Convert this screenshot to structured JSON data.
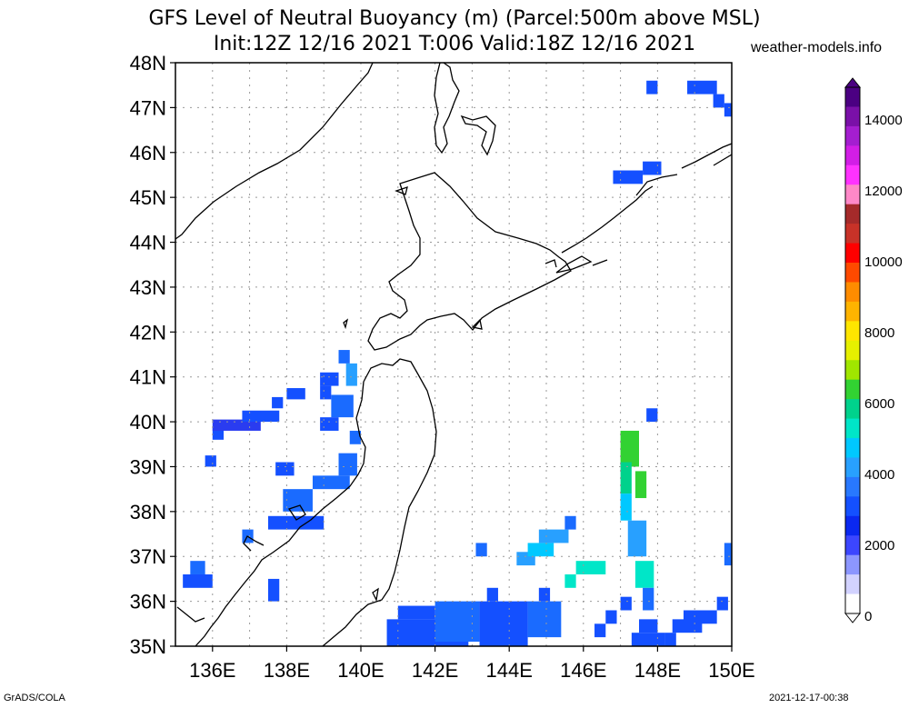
{
  "header": {
    "title_line1": "GFS Level of Neutral Buoyancy (m) (Parcel:500m above MSL)",
    "title_line2": "Init:12Z 12/16 2021 T:006 Valid:18Z 12/16 2021",
    "site": "weather-models.info"
  },
  "footer": {
    "credit": "GrADS/COLA",
    "timestamp": "2021-12-17-00:38"
  },
  "map": {
    "lat_labels": [
      "48N",
      "47N",
      "46N",
      "45N",
      "44N",
      "43N",
      "42N",
      "41N",
      "40N",
      "39N",
      "38N",
      "37N",
      "36N",
      "35N"
    ],
    "lon_labels": [
      "136E",
      "138E",
      "140E",
      "142E",
      "144E",
      "146E",
      "148E",
      "150E"
    ],
    "extent": {
      "lon_min": 135,
      "lon_max": 150,
      "lat_min": 35,
      "lat_max": 48
    }
  },
  "colorbar": {
    "labels": [
      "14000",
      "12000",
      "10000",
      "8000",
      "6000",
      "4000",
      "2000",
      "0"
    ],
    "colors": [
      "#4b0082",
      "#7a10a8",
      "#a41ed0",
      "#d21ee6",
      "#ff32ff",
      "#ff88c8",
      "#a52a2a",
      "#c83228",
      "#ff0000",
      "#ff4a00",
      "#ff8c00",
      "#ffb400",
      "#ffe600",
      "#e6f000",
      "#a0e600",
      "#32d232",
      "#00d28c",
      "#00e6c8",
      "#00c8ff",
      "#28a0ff",
      "#2878ff",
      "#1450ff",
      "#0a28f0",
      "#3c46ff",
      "#8c96ff",
      "#d2d2ff",
      "#ffffff"
    ]
  },
  "lnb_cells": [
    {
      "lon": 135.2,
      "lat": 36.3,
      "w": 0.8,
      "h": 0.3,
      "c": "#1450ff"
    },
    {
      "lon": 135.4,
      "lat": 36.6,
      "w": 0.4,
      "h": 0.3,
      "c": "#1a6bff"
    },
    {
      "lon": 135.8,
      "lat": 39.0,
      "w": 0.3,
      "h": 0.25,
      "c": "#1450ff"
    },
    {
      "lon": 136.0,
      "lat": 39.6,
      "w": 0.3,
      "h": 0.3,
      "c": "#1450ff"
    },
    {
      "lon": 136.0,
      "lat": 39.8,
      "w": 1.3,
      "h": 0.25,
      "c": "#2a3cf0"
    },
    {
      "lon": 136.8,
      "lat": 40.0,
      "w": 1.0,
      "h": 0.25,
      "c": "#1450ff"
    },
    {
      "lon": 137.6,
      "lat": 40.3,
      "w": 0.3,
      "h": 0.25,
      "c": "#1450ff"
    },
    {
      "lon": 138.0,
      "lat": 40.5,
      "w": 0.5,
      "h": 0.25,
      "c": "#1450ff"
    },
    {
      "lon": 138.9,
      "lat": 40.8,
      "w": 0.5,
      "h": 0.3,
      "c": "#1450ff"
    },
    {
      "lon": 138.9,
      "lat": 40.5,
      "w": 0.3,
      "h": 0.3,
      "c": "#1450ff"
    },
    {
      "lon": 139.2,
      "lat": 40.1,
      "w": 0.6,
      "h": 0.5,
      "c": "#1a6bff"
    },
    {
      "lon": 138.9,
      "lat": 39.8,
      "w": 0.5,
      "h": 0.3,
      "c": "#1450ff"
    },
    {
      "lon": 139.6,
      "lat": 40.8,
      "w": 0.3,
      "h": 0.5,
      "c": "#28a0ff"
    },
    {
      "lon": 139.4,
      "lat": 41.3,
      "w": 0.3,
      "h": 0.3,
      "c": "#1a6bff"
    },
    {
      "lon": 139.7,
      "lat": 39.5,
      "w": 0.3,
      "h": 0.3,
      "c": "#1a6bff"
    },
    {
      "lon": 139.4,
      "lat": 38.8,
      "w": 0.5,
      "h": 0.5,
      "c": "#1a6bff"
    },
    {
      "lon": 138.7,
      "lat": 38.5,
      "w": 1.0,
      "h": 0.3,
      "c": "#1a6bff"
    },
    {
      "lon": 137.7,
      "lat": 38.8,
      "w": 0.5,
      "h": 0.3,
      "c": "#1450ff"
    },
    {
      "lon": 137.9,
      "lat": 38.0,
      "w": 0.8,
      "h": 0.5,
      "c": "#1a6bff"
    },
    {
      "lon": 137.5,
      "lat": 37.6,
      "w": 1.5,
      "h": 0.3,
      "c": "#1450ff"
    },
    {
      "lon": 136.8,
      "lat": 37.3,
      "w": 0.3,
      "h": 0.3,
      "c": "#1a6bff"
    },
    {
      "lon": 137.5,
      "lat": 36.0,
      "w": 0.3,
      "h": 0.5,
      "c": "#1450ff"
    },
    {
      "lon": 140.7,
      "lat": 35.0,
      "w": 2.2,
      "h": 0.6,
      "c": "#1450ff"
    },
    {
      "lon": 141.0,
      "lat": 35.6,
      "w": 1.0,
      "h": 0.3,
      "c": "#1450ff"
    },
    {
      "lon": 142.0,
      "lat": 35.1,
      "w": 1.2,
      "h": 0.9,
      "c": "#1a6bff"
    },
    {
      "lon": 143.2,
      "lat": 35.0,
      "w": 1.3,
      "h": 1.0,
      "c": "#1450ff"
    },
    {
      "lon": 144.5,
      "lat": 35.2,
      "w": 0.9,
      "h": 0.8,
      "c": "#1a6bff"
    },
    {
      "lon": 143.4,
      "lat": 36.0,
      "w": 0.3,
      "h": 0.3,
      "c": "#1450ff"
    },
    {
      "lon": 144.8,
      "lat": 36.0,
      "w": 0.3,
      "h": 0.3,
      "c": "#1450ff"
    },
    {
      "lon": 143.1,
      "lat": 37.0,
      "w": 0.3,
      "h": 0.3,
      "c": "#1a6bff"
    },
    {
      "lon": 144.2,
      "lat": 36.8,
      "w": 0.5,
      "h": 0.3,
      "c": "#28a0ff"
    },
    {
      "lon": 144.5,
      "lat": 37.0,
      "w": 0.7,
      "h": 0.3,
      "c": "#00c8ff"
    },
    {
      "lon": 144.8,
      "lat": 37.3,
      "w": 0.8,
      "h": 0.3,
      "c": "#28a0ff"
    },
    {
      "lon": 145.5,
      "lat": 37.6,
      "w": 0.3,
      "h": 0.3,
      "c": "#1a6bff"
    },
    {
      "lon": 145.8,
      "lat": 36.6,
      "w": 0.8,
      "h": 0.3,
      "c": "#00e6c8"
    },
    {
      "lon": 145.5,
      "lat": 36.3,
      "w": 0.3,
      "h": 0.3,
      "c": "#00e6c8"
    },
    {
      "lon": 146.6,
      "lat": 35.5,
      "w": 0.3,
      "h": 0.3,
      "c": "#1450ff"
    },
    {
      "lon": 146.3,
      "lat": 35.2,
      "w": 0.3,
      "h": 0.3,
      "c": "#1450ff"
    },
    {
      "lon": 147.0,
      "lat": 39.0,
      "w": 0.5,
      "h": 0.8,
      "c": "#32d232"
    },
    {
      "lon": 147.0,
      "lat": 38.4,
      "w": 0.3,
      "h": 0.7,
      "c": "#00d28c"
    },
    {
      "lon": 147.4,
      "lat": 38.3,
      "w": 0.3,
      "h": 0.6,
      "c": "#32d232"
    },
    {
      "lon": 147.0,
      "lat": 37.8,
      "w": 0.3,
      "h": 0.6,
      "c": "#00c8ff"
    },
    {
      "lon": 147.2,
      "lat": 37.0,
      "w": 0.5,
      "h": 0.8,
      "c": "#28a0ff"
    },
    {
      "lon": 147.4,
      "lat": 36.3,
      "w": 0.5,
      "h": 0.6,
      "c": "#00e6c8"
    },
    {
      "lon": 147.6,
      "lat": 35.8,
      "w": 0.3,
      "h": 0.5,
      "c": "#1a6bff"
    },
    {
      "lon": 147.3,
      "lat": 35.0,
      "w": 0.9,
      "h": 0.3,
      "c": "#1450ff"
    },
    {
      "lon": 147.5,
      "lat": 35.3,
      "w": 0.5,
      "h": 0.3,
      "c": "#1450ff"
    },
    {
      "lon": 148.2,
      "lat": 35.0,
      "w": 0.3,
      "h": 0.3,
      "c": "#1450ff"
    },
    {
      "lon": 148.4,
      "lat": 35.3,
      "w": 0.8,
      "h": 0.3,
      "c": "#1450ff"
    },
    {
      "lon": 148.7,
      "lat": 35.5,
      "w": 0.9,
      "h": 0.3,
      "c": "#1450ff"
    },
    {
      "lon": 149.6,
      "lat": 35.8,
      "w": 0.3,
      "h": 0.3,
      "c": "#1450ff"
    },
    {
      "lon": 147.0,
      "lat": 35.8,
      "w": 0.3,
      "h": 0.3,
      "c": "#1450ff"
    },
    {
      "lon": 149.8,
      "lat": 36.8,
      "w": 0.3,
      "h": 0.5,
      "c": "#1a6bff"
    },
    {
      "lon": 147.7,
      "lat": 40.0,
      "w": 0.3,
      "h": 0.3,
      "c": "#1450ff"
    },
    {
      "lon": 147.7,
      "lat": 47.3,
      "w": 0.3,
      "h": 0.3,
      "c": "#1450ff"
    },
    {
      "lon": 148.8,
      "lat": 47.3,
      "w": 0.8,
      "h": 0.3,
      "c": "#1450ff"
    },
    {
      "lon": 149.5,
      "lat": 47.0,
      "w": 0.3,
      "h": 0.3,
      "c": "#1450ff"
    },
    {
      "lon": 149.8,
      "lat": 46.8,
      "w": 0.2,
      "h": 0.3,
      "c": "#1450ff"
    },
    {
      "lon": 147.6,
      "lat": 45.5,
      "w": 0.5,
      "h": 0.3,
      "c": "#1450ff"
    },
    {
      "lon": 146.8,
      "lat": 45.3,
      "w": 0.8,
      "h": 0.3,
      "c": "#1450ff"
    }
  ]
}
